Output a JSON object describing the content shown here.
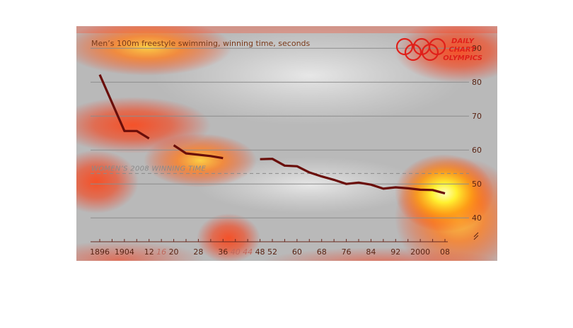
{
  "chart_data": {
    "type": "line",
    "title": "Men’s 100m freestyle swimming, winning time, seconds",
    "brand": [
      "DAILY",
      "CHART",
      "OLYMPICS"
    ],
    "reference_line": {
      "label": "WOMEN’S 2008 WINNING TIME",
      "value": 53.1
    },
    "y_ticks": [
      40,
      50,
      60,
      70,
      80,
      90
    ],
    "ylim": [
      34,
      94
    ],
    "xlim": [
      1896,
      2008
    ],
    "axis_break": true,
    "grid": true,
    "x_ticks": [
      {
        "label": "1896",
        "year": 1896,
        "held": true
      },
      {
        "label": "1904",
        "year": 1904,
        "held": true
      },
      {
        "label": "12",
        "year": 1912,
        "held": true
      },
      {
        "label": "16",
        "year": 1916,
        "held": false
      },
      {
        "label": "20",
        "year": 1920,
        "held": true
      },
      {
        "label": "28",
        "year": 1928,
        "held": true
      },
      {
        "label": "36",
        "year": 1936,
        "held": true
      },
      {
        "label": "40",
        "year": 1940,
        "held": false
      },
      {
        "label": "44",
        "year": 1944,
        "held": false
      },
      {
        "label": "48",
        "year": 1948,
        "held": true
      },
      {
        "label": "52",
        "year": 1952,
        "held": true
      },
      {
        "label": "60",
        "year": 1960,
        "held": true
      },
      {
        "label": "68",
        "year": 1968,
        "held": true
      },
      {
        "label": "76",
        "year": 1976,
        "held": true
      },
      {
        "label": "84",
        "year": 1984,
        "held": true
      },
      {
        "label": "92",
        "year": 1992,
        "held": true
      },
      {
        "label": "2000",
        "year": 2000,
        "held": true
      },
      {
        "label": "08",
        "year": 2008,
        "held": true
      }
    ],
    "series": [
      {
        "segments": [
          [
            [
              1896,
              82.2
            ],
            [
              1904,
              65.6
            ],
            [
              1908,
              65.6
            ],
            [
              1912,
              63.4
            ]
          ],
          [
            [
              1920,
              61.4
            ],
            [
              1924,
              59.0
            ],
            [
              1928,
              58.6
            ],
            [
              1932,
              58.2
            ],
            [
              1936,
              57.6
            ]
          ],
          [
            [
              1948,
              57.3
            ],
            [
              1952,
              57.4
            ],
            [
              1956,
              55.4
            ],
            [
              1960,
              55.2
            ],
            [
              1964,
              53.4
            ],
            [
              1968,
              52.2
            ],
            [
              1972,
              51.2
            ],
            [
              1976,
              50.0
            ],
            [
              1980,
              50.4
            ],
            [
              1984,
              49.8
            ],
            [
              1988,
              48.6
            ],
            [
              1992,
              49.0
            ],
            [
              1996,
              48.7
            ],
            [
              2000,
              48.3
            ],
            [
              2004,
              48.2
            ],
            [
              2008,
              47.2
            ]
          ]
        ]
      }
    ],
    "colors": {
      "line": "#6a0e0a",
      "reference": "#8a8a8a",
      "title": "#7a3a1a",
      "tick_label": "#5a2414",
      "missing_label": "#c06a5e",
      "brand": "#e0201a",
      "grid": "#8c8c8c"
    }
  }
}
